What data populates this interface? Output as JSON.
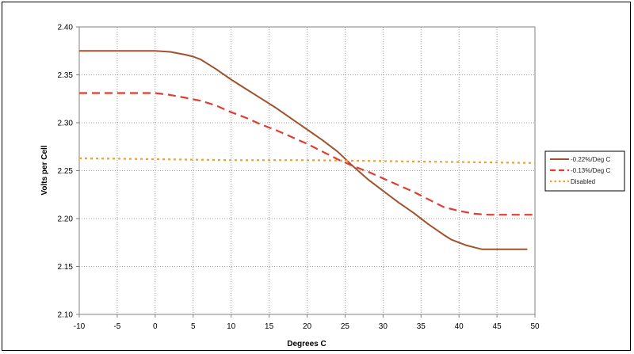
{
  "chart_data": {
    "type": "line",
    "title": "",
    "xlabel": "Degrees C",
    "ylabel": "Volts per Cell",
    "xlim": [
      -10,
      50
    ],
    "ylim": [
      2.1,
      2.4
    ],
    "x_ticks": [
      "-10",
      "-5",
      "0",
      "5",
      "10",
      "15",
      "20",
      "25",
      "30",
      "35",
      "40",
      "45",
      "50"
    ],
    "y_ticks": [
      "2.10",
      "2.15",
      "2.20",
      "2.25",
      "2.30",
      "2.35",
      "2.40"
    ],
    "x_tick_values": [
      -10,
      -5,
      0,
      5,
      10,
      15,
      20,
      25,
      30,
      35,
      40,
      45,
      50
    ],
    "y_tick_values": [
      2.1,
      2.15,
      2.2,
      2.25,
      2.3,
      2.35,
      2.4
    ],
    "grid": true,
    "legend_position": "right",
    "series": [
      {
        "name": "-0.22%/Deg C",
        "color": "#a0522d",
        "style": "solid",
        "x": [
          -10,
          -5,
          -2,
          0,
          2,
          4,
          5,
          6,
          8,
          10,
          12,
          14,
          16,
          18,
          20,
          22,
          24,
          26,
          28,
          30,
          32,
          34,
          36,
          38,
          39,
          40,
          41,
          42,
          43,
          45,
          47,
          49
        ],
        "y": [
          2.375,
          2.375,
          2.375,
          2.375,
          2.374,
          2.371,
          2.369,
          2.366,
          2.356,
          2.345,
          2.335,
          2.325,
          2.315,
          2.304,
          2.293,
          2.282,
          2.27,
          2.255,
          2.241,
          2.229,
          2.217,
          2.206,
          2.194,
          2.183,
          2.178,
          2.175,
          2.172,
          2.17,
          2.168,
          2.168,
          2.168,
          2.168
        ]
      },
      {
        "name": "-0.13%/Deg C",
        "color": "#e03c31",
        "style": "dashed",
        "x": [
          -10,
          -5,
          0,
          2,
          4,
          6,
          8,
          10,
          12,
          14,
          16,
          18,
          20,
          22,
          24,
          26,
          28,
          30,
          32,
          34,
          36,
          38,
          40,
          42,
          44,
          46,
          48,
          50
        ],
        "y": [
          2.331,
          2.331,
          2.331,
          2.329,
          2.326,
          2.323,
          2.318,
          2.311,
          2.305,
          2.298,
          2.292,
          2.285,
          2.278,
          2.27,
          2.262,
          2.255,
          2.249,
          2.242,
          2.235,
          2.228,
          2.22,
          2.212,
          2.208,
          2.205,
          2.204,
          2.204,
          2.204,
          2.204
        ]
      },
      {
        "name": "Disabled",
        "color": "#f0a030",
        "style": "dotted",
        "x": [
          -10,
          0,
          10,
          20,
          30,
          40,
          50
        ],
        "y": [
          2.263,
          2.262,
          2.261,
          2.261,
          2.26,
          2.259,
          2.258
        ]
      }
    ]
  }
}
